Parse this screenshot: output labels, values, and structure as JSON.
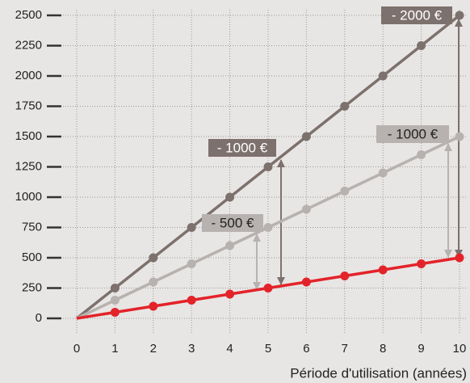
{
  "chart_data": {
    "type": "line",
    "x_label": "Période d'utilisation (années)",
    "x": [
      0,
      1,
      2,
      3,
      4,
      5,
      6,
      7,
      8,
      9,
      10
    ],
    "series": [
      {
        "color": "#7d716d",
        "values": [
          0,
          250,
          500,
          750,
          1000,
          1250,
          1500,
          1750,
          2000,
          2250,
          2500
        ]
      },
      {
        "color": "#b7b2af",
        "values": [
          0,
          150,
          300,
          450,
          600,
          750,
          900,
          1050,
          1200,
          1350,
          1500
        ]
      },
      {
        "color": "#e3232a",
        "values": [
          0,
          50,
          100,
          150,
          200,
          250,
          300,
          350,
          400,
          450,
          500
        ]
      }
    ],
    "xlim": [
      0,
      10
    ],
    "xticks": [
      0,
      1,
      2,
      3,
      4,
      5,
      6,
      7,
      8,
      9,
      10
    ],
    "ylim": [
      0,
      2500
    ],
    "yticks": [
      0,
      250,
      500,
      750,
      1000,
      1250,
      1500,
      1750,
      2000,
      2250,
      2500
    ],
    "grid": true,
    "annotations": [
      {
        "text": "- 2000 €",
        "color": "#7d716d"
      },
      {
        "text": "- 1000 €",
        "color": "#7d716d"
      },
      {
        "text": "- 1000 €",
        "color": "#b7b2af"
      },
      {
        "text": "- 500 €",
        "color": "#b7b2af"
      }
    ]
  }
}
